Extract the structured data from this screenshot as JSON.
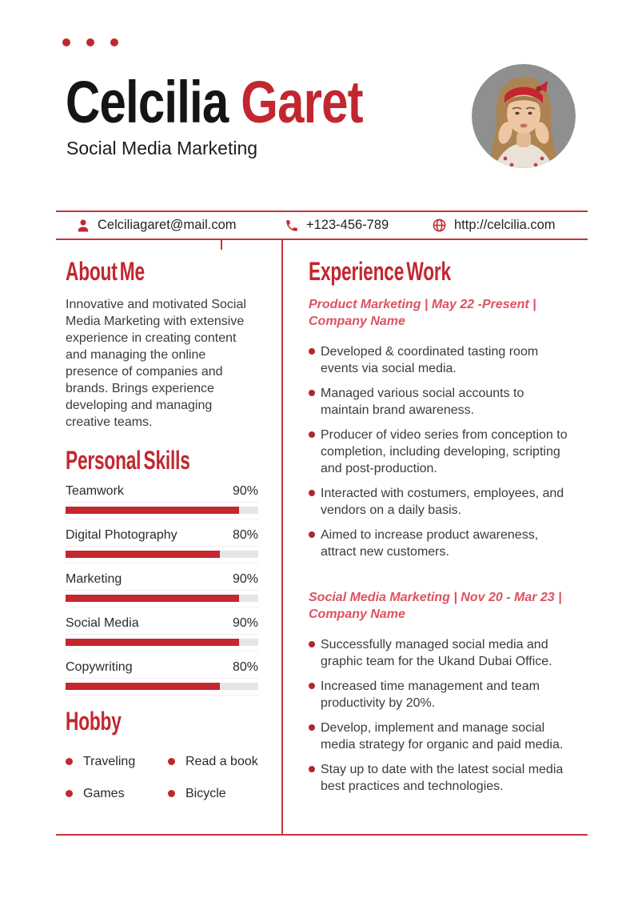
{
  "colors": {
    "accent": "#c22730",
    "accent_light": "#dd5261",
    "line": "#c9343d",
    "track": "#e6e4e4",
    "photo_bg": "#8f8f8f"
  },
  "icons": [
    "person-icon",
    "phone-icon",
    "globe-icon",
    "bullet-dot-icon"
  ],
  "header": {
    "first_name": "Celcilia",
    "last_name": "Garet",
    "subtitle": "Social Media Marketing"
  },
  "contact": {
    "email": "Celciliagaret@mail.com",
    "phone": "+123-456-789",
    "website": "http://celcilia.com"
  },
  "about": {
    "heading": "About Me",
    "text": "Innovative and motivated Social Media Marketing with extensive experience in creating content and managing the online presence of companies and brands. Brings experience developing and managing creative teams."
  },
  "skills": {
    "heading": "Personal Skills",
    "items": [
      {
        "label": "Teamwork",
        "percent": "90%",
        "value": 90
      },
      {
        "label": "Digital Photography",
        "percent": "80%",
        "value": 80
      },
      {
        "label": "Marketing",
        "percent": "90%",
        "value": 90
      },
      {
        "label": "Social Media",
        "percent": "90%",
        "value": 90
      },
      {
        "label": "Copywriting",
        "percent": "80%",
        "value": 80
      }
    ]
  },
  "hobby": {
    "heading": "Hobby",
    "items": [
      "Traveling",
      "Read a book",
      "Games",
      "Bicycle"
    ]
  },
  "experience": {
    "heading": "Experience Work",
    "jobs": [
      {
        "title": "Product Marketing | May 22 -Present |",
        "company": "Company Name",
        "bullets": [
          "Developed & coordinated tasting room events via social media.",
          "Managed various social accounts to maintain brand awareness.",
          "Producer of video series from conception to completion, including developing, scripting and post-production.",
          "Interacted with costumers, employees, and vendors on a daily basis.",
          "Aimed to increase product awareness, attract new customers."
        ]
      },
      {
        "title": "Social Media Marketing | Nov 20 - Mar 23 |",
        "company": "Company Name",
        "bullets": [
          "Successfully managed social media and graphic team for the Ukand Dubai Office.",
          "Increased time management and team productivity by 20%.",
          "Develop, implement and manage social media strategy for organic and paid media.",
          "Stay up to date with the latest social media best practices and technologies."
        ]
      }
    ]
  }
}
